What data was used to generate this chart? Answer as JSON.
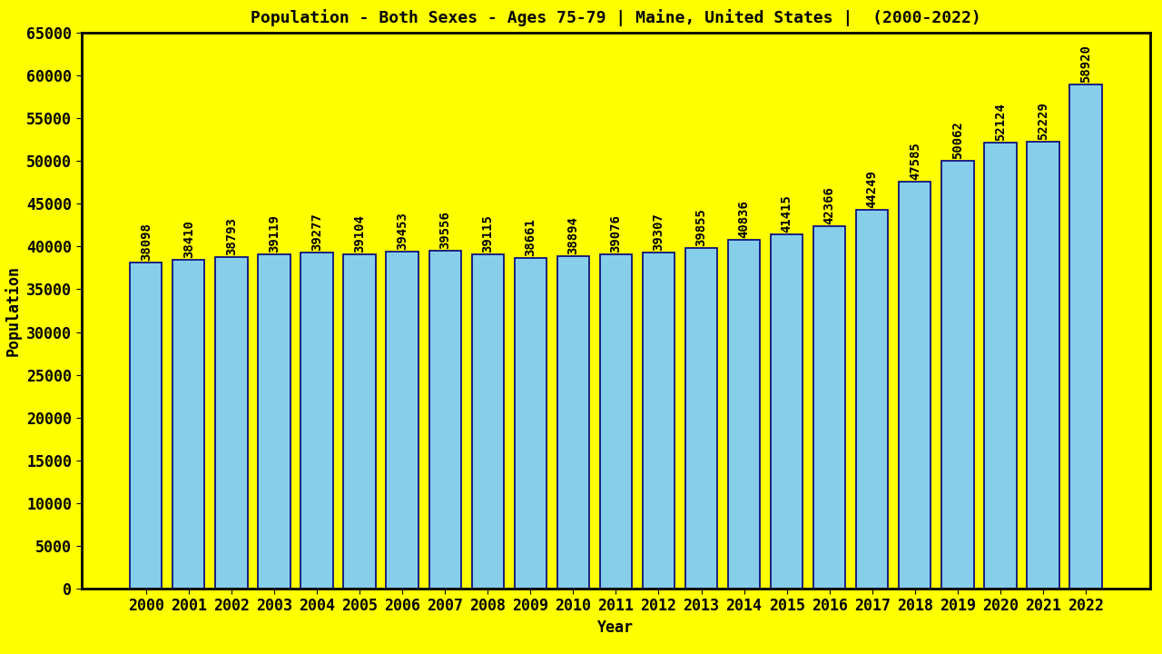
{
  "title": "Population - Both Sexes - Ages 75-79 | Maine, United States |  (2000-2022)",
  "xlabel": "Year",
  "ylabel": "Population",
  "background_color": "#FFFF00",
  "bar_color": "#87CEEB",
  "bar_edge_color": "#000080",
  "years": [
    2000,
    2001,
    2002,
    2003,
    2004,
    2005,
    2006,
    2007,
    2008,
    2009,
    2010,
    2011,
    2012,
    2013,
    2014,
    2015,
    2016,
    2017,
    2018,
    2019,
    2020,
    2021,
    2022
  ],
  "values": [
    38098,
    38410,
    38793,
    39119,
    39277,
    39104,
    39453,
    39556,
    39115,
    38661,
    38894,
    39076,
    39307,
    39855,
    40836,
    41415,
    42366,
    44249,
    47585,
    50062,
    52124,
    52229,
    58920
  ],
  "ylim": [
    0,
    65000
  ],
  "yticks": [
    0,
    5000,
    10000,
    15000,
    20000,
    25000,
    30000,
    35000,
    40000,
    45000,
    50000,
    55000,
    60000,
    65000
  ],
  "title_fontsize": 13,
  "axis_label_fontsize": 12,
  "tick_fontsize": 12,
  "annotation_fontsize": 10,
  "bar_width": 0.75
}
